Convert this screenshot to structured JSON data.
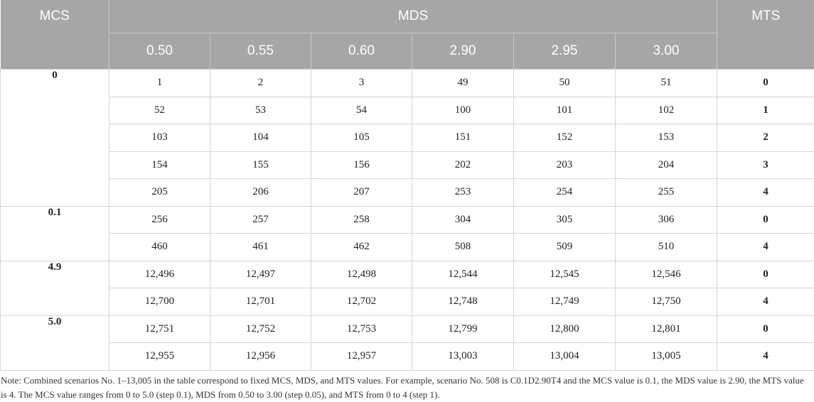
{
  "header": {
    "mcs": "MCS",
    "mds": "MDS",
    "mts": "MTS",
    "mds_values": [
      "0.50",
      "0.55",
      "0.60",
      "2.90",
      "2.95",
      "3.00"
    ]
  },
  "groups": [
    {
      "mcs": "0",
      "rows": [
        {
          "cells": [
            "1",
            "2",
            "3",
            "49",
            "50",
            "51"
          ],
          "mts": "0"
        },
        {
          "cells": [
            "52",
            "53",
            "54",
            "100",
            "101",
            "102"
          ],
          "mts": "1"
        },
        {
          "cells": [
            "103",
            "104",
            "105",
            "151",
            "152",
            "153"
          ],
          "mts": "2"
        },
        {
          "cells": [
            "154",
            "155",
            "156",
            "202",
            "203",
            "204"
          ],
          "mts": "3"
        },
        {
          "cells": [
            "205",
            "206",
            "207",
            "253",
            "254",
            "255"
          ],
          "mts": "4"
        }
      ]
    },
    {
      "mcs": "0.1",
      "rows": [
        {
          "cells": [
            "256",
            "257",
            "258",
            "304",
            "305",
            "306"
          ],
          "mts": "0"
        },
        {
          "cells": [
            "460",
            "461",
            "462",
            "508",
            "509",
            "510"
          ],
          "mts": "4"
        }
      ]
    },
    {
      "mcs": "4.9",
      "rows": [
        {
          "cells": [
            "12,496",
            "12,497",
            "12,498",
            "12,544",
            "12,545",
            "12,546"
          ],
          "mts": "0"
        },
        {
          "cells": [
            "12,700",
            "12,701",
            "12,702",
            "12,748",
            "12,749",
            "12,750"
          ],
          "mts": "4"
        }
      ]
    },
    {
      "mcs": "5.0",
      "rows": [
        {
          "cells": [
            "12,751",
            "12,752",
            "12,753",
            "12,799",
            "12,800",
            "12,801"
          ],
          "mts": "0"
        },
        {
          "cells": [
            "12,955",
            "12,956",
            "12,957",
            "13,003",
            "13,004",
            "13,005"
          ],
          "mts": "4"
        }
      ]
    }
  ],
  "note": "Note: Combined scenarios No. 1–13,005 in the table correspond to fixed MCS, MDS, and MTS values. For example, scenario No. 508 is C0.1D2.90T4 and the MCS value is 0.1, the MDS value is 2.90, the MTS value is 4. The MCS value ranges from 0 to 5.0 (step 0.1), MDS from 0.50 to 3.00 (step 0.05), and MTS from 0 to 4 (step 1)."
}
